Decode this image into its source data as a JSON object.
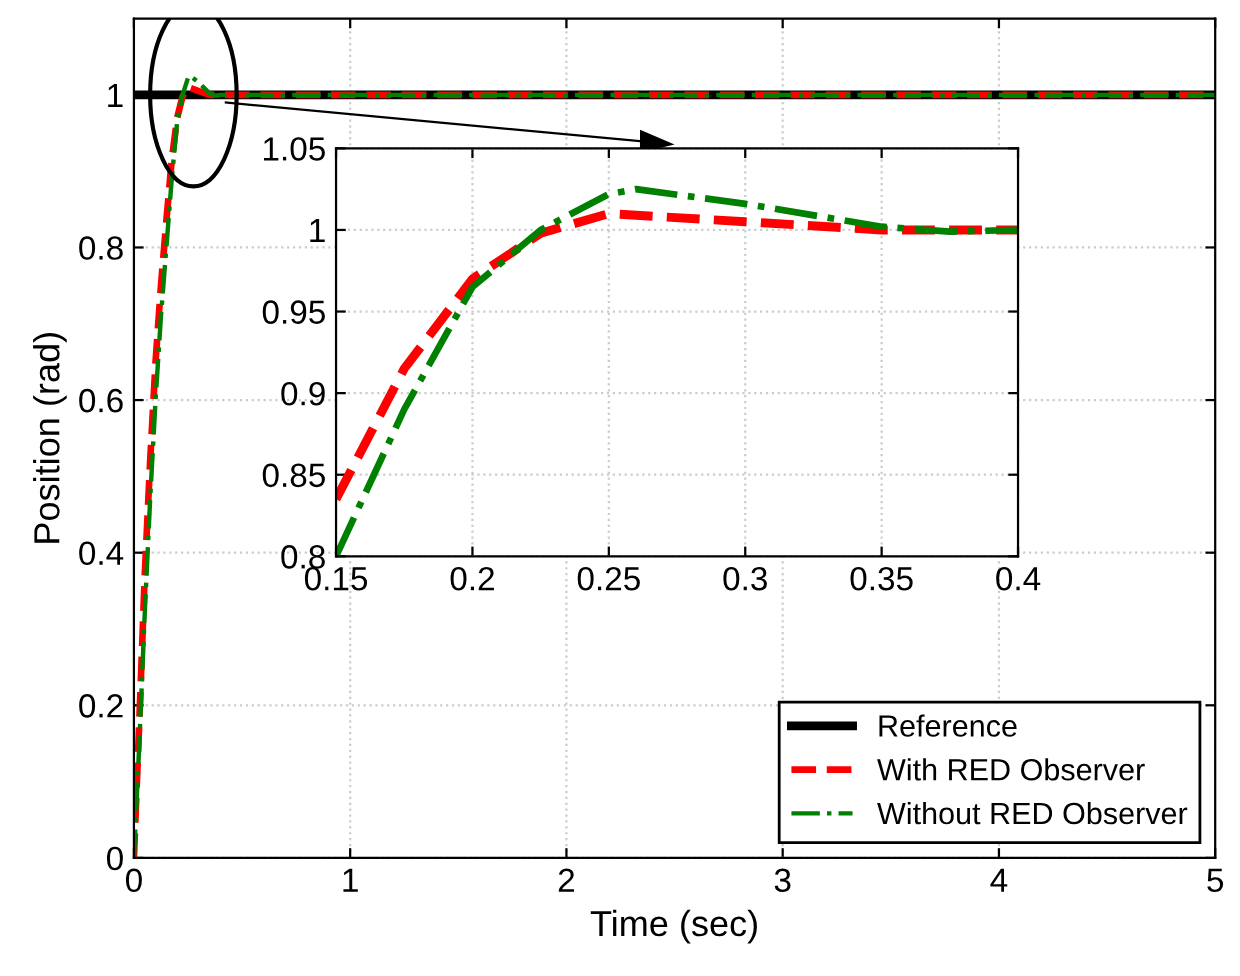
{
  "chart_data": [
    {
      "type": "line",
      "xlabel": "Time (sec)",
      "ylabel": "Position (rad)",
      "xlim": [
        0,
        5
      ],
      "ylim": [
        0,
        1.1
      ],
      "xticks": [
        0,
        1,
        2,
        3,
        4,
        5
      ],
      "yticks": [
        0,
        0.2,
        0.4,
        0.6,
        0.8,
        1
      ],
      "grid": true,
      "legend": "bottom right",
      "series": [
        {
          "name": "Reference",
          "color": "#000000",
          "line_style": "solid",
          "x": [
            0,
            5
          ],
          "values": [
            1,
            1
          ]
        },
        {
          "name": "With RED Observer",
          "color": "#ff0000",
          "line_style": "dashed",
          "x": [
            0,
            0.025,
            0.05,
            0.075,
            0.1,
            0.125,
            0.15,
            0.175,
            0.2,
            0.225,
            0.25,
            0.3,
            0.35,
            0.4,
            5
          ],
          "values": [
            0,
            0.18,
            0.37,
            0.52,
            0.65,
            0.75,
            0.835,
            0.915,
            0.97,
            0.998,
            1.01,
            1.005,
            1.0,
            1.0,
            1.0
          ]
        },
        {
          "name": "Without RED Observer",
          "color": "#008000",
          "line_style": "dashdot",
          "x": [
            0,
            0.025,
            0.05,
            0.075,
            0.1,
            0.125,
            0.15,
            0.175,
            0.2,
            0.225,
            0.25,
            0.26,
            0.3,
            0.35,
            0.375,
            0.4,
            5
          ],
          "values": [
            0,
            0.15,
            0.32,
            0.47,
            0.6,
            0.71,
            0.8,
            0.89,
            0.965,
            1.0,
            1.022,
            1.025,
            1.016,
            1.002,
            0.999,
            1.0,
            1.0
          ]
        }
      ]
    },
    {
      "type": "line",
      "xlim": [
        0.15,
        0.4
      ],
      "ylim": [
        0.8,
        1.05
      ],
      "xticks": [
        0.15,
        0.2,
        0.25,
        0.3,
        0.35,
        0.4
      ],
      "yticks": [
        0.8,
        0.85,
        0.9,
        0.95,
        1,
        1.05
      ],
      "grid": true,
      "series": [
        {
          "color": "#ff0000",
          "line_style": "dashed",
          "x": [
            0.15,
            0.175,
            0.2,
            0.225,
            0.25,
            0.3,
            0.35,
            0.4
          ],
          "values": [
            0.835,
            0.915,
            0.97,
            0.998,
            1.01,
            1.005,
            1.0,
            1.0
          ]
        },
        {
          "color": "#008000",
          "line_style": "dashdot",
          "x": [
            0.15,
            0.175,
            0.2,
            0.225,
            0.25,
            0.26,
            0.3,
            0.35,
            0.375,
            0.4
          ],
          "values": [
            0.8,
            0.89,
            0.965,
            1.0,
            1.022,
            1.025,
            1.016,
            1.002,
            0.999,
            1.0
          ]
        }
      ]
    }
  ]
}
